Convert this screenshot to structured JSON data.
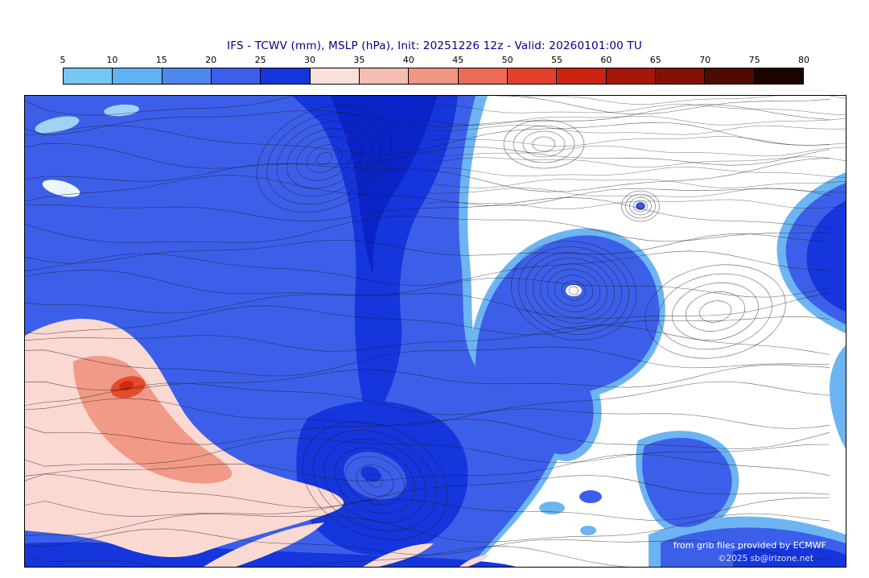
{
  "title": "IFS - TCWV (mm), MSLP (hPa), Init: 20251226 12z - Valid: 20260101:00 TU",
  "colorbar": {
    "ticks": [
      "5",
      "10",
      "15",
      "20",
      "25",
      "30",
      "35",
      "40",
      "45",
      "50",
      "55",
      "60",
      "65",
      "70",
      "75",
      "80"
    ],
    "segment_colors": [
      "#76c7f2",
      "#62b1f2",
      "#4d88ef",
      "#3c5fe9",
      "#1536dd",
      "#fae0da",
      "#f6bdb2",
      "#f19684",
      "#ec6b57",
      "#e2402a",
      "#cb2413",
      "#a6170b",
      "#821205",
      "#4f0b02",
      "#1c0500"
    ]
  },
  "map": {
    "credits": {
      "line1": "from grib files provided by ECMWF",
      "line2": "©2025 sb@irizone.net"
    },
    "fill_palette": {
      "tcwv_10_15": "#6db5f2",
      "tcwv_20_25": "#3c5fe9",
      "tcwv_25_30": "#1536dd",
      "tcwv_30_35": "#fad9d2",
      "tcwv_40_45": "#f19a87",
      "tcwv_50_55": "#e84b2c",
      "contour_color": "#1c1c1c"
    }
  },
  "chart_data": {
    "type": "heatmap",
    "title": "IFS - TCWV (mm), MSLP (hPa), Init: 20251226 12z - Valid: 20260101:00 TU",
    "model": "IFS",
    "shaded_variable": "TCWV (mm)",
    "contour_variable": "MSLP (hPa)",
    "init_time": "20251226 12z",
    "valid_time": "20260101:00 TU",
    "colorbar_ticks": [
      5,
      10,
      15,
      20,
      25,
      30,
      35,
      40,
      45,
      50,
      55,
      60,
      65,
      70,
      75,
      80
    ],
    "colorbar_position": "top",
    "legend": "TCWV shaded per colorbar; MSLP shown as black contour lines with closed low/high centers"
  }
}
